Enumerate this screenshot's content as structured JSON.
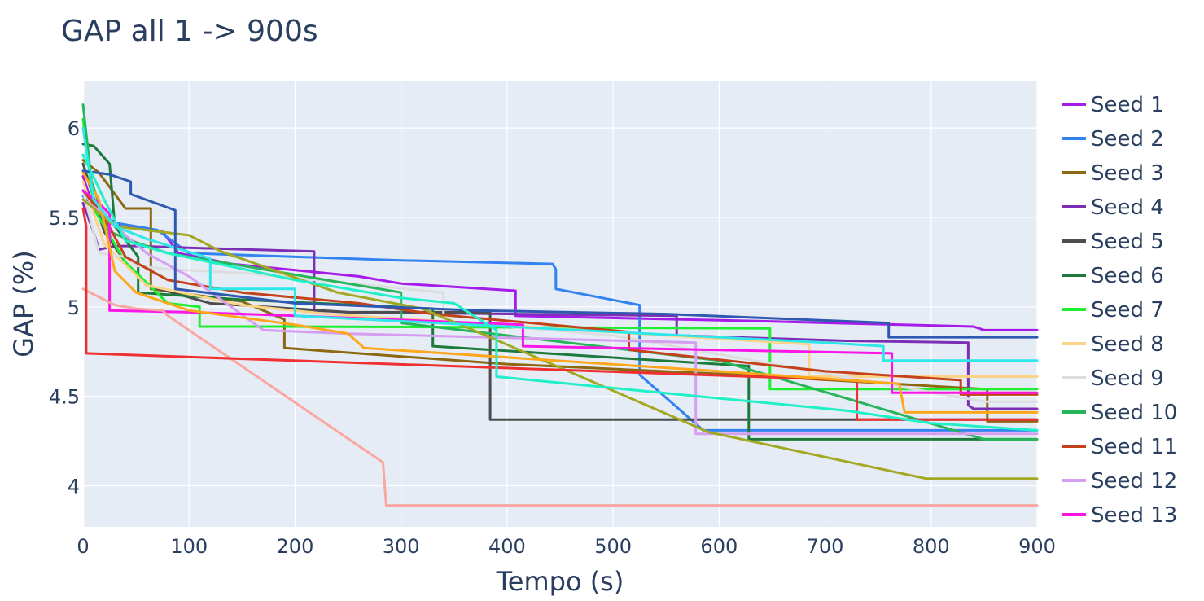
{
  "chart_data": {
    "type": "line",
    "title": "GAP all 1 -> 900s",
    "xlabel": "Tempo (s)",
    "ylabel": "GAP (%)",
    "xlim": [
      0,
      900
    ],
    "ylim": [
      3.77,
      6.26
    ],
    "xticks": [
      0,
      100,
      200,
      300,
      400,
      500,
      600,
      700,
      800,
      900
    ],
    "yticks": [
      4,
      4.5,
      5,
      5.5,
      6
    ],
    "ytick_labels": [
      "4",
      "4.5",
      "5",
      "5.5",
      "6"
    ],
    "grid": true,
    "legend_position": "right",
    "plot_background": "#e5ecf6",
    "series": [
      {
        "name": "Seed 1",
        "color": "#a61bea",
        "points": [
          [
            0,
            5.73
          ],
          [
            10,
            5.55
          ],
          [
            35,
            5.45
          ],
          [
            75,
            5.42
          ],
          [
            90,
            5.3
          ],
          [
            140,
            5.24
          ],
          [
            260,
            5.17
          ],
          [
            300,
            5.13
          ],
          [
            408,
            5.09
          ],
          [
            408,
            4.95
          ],
          [
            640,
            4.92
          ],
          [
            840,
            4.89
          ],
          [
            850,
            4.87
          ],
          [
            900,
            4.87
          ]
        ]
      },
      {
        "name": "Seed 2",
        "color": "#3283f0",
        "points": [
          [
            0,
            5.62
          ],
          [
            20,
            5.48
          ],
          [
            70,
            5.43
          ],
          [
            100,
            5.3
          ],
          [
            300,
            5.26
          ],
          [
            443,
            5.24
          ],
          [
            446,
            5.21
          ],
          [
            446,
            5.1
          ],
          [
            525,
            5.01
          ],
          [
            525,
            4.62
          ],
          [
            560,
            4.44
          ],
          [
            585,
            4.31
          ],
          [
            900,
            4.31
          ]
        ]
      },
      {
        "name": "Seed 3",
        "color": "#8c6810",
        "points": [
          [
            0,
            5.82
          ],
          [
            15,
            5.75
          ],
          [
            30,
            5.63
          ],
          [
            40,
            5.55
          ],
          [
            64,
            5.55
          ],
          [
            64,
            5.1
          ],
          [
            150,
            5.03
          ],
          [
            190,
            4.93
          ],
          [
            190,
            4.77
          ],
          [
            400,
            4.68
          ],
          [
            620,
            4.62
          ],
          [
            850,
            4.54
          ],
          [
            853,
            4.54
          ],
          [
            853,
            4.36
          ],
          [
            900,
            4.36
          ]
        ]
      },
      {
        "name": "Seed 4",
        "color": "#7c2eb5",
        "points": [
          [
            0,
            5.58
          ],
          [
            8,
            5.45
          ],
          [
            12,
            5.38
          ],
          [
            15,
            5.32
          ],
          [
            30,
            5.34
          ],
          [
            50,
            5.34
          ],
          [
            100,
            5.33
          ],
          [
            218,
            5.31
          ],
          [
            218,
            4.98
          ],
          [
            250,
            4.97
          ],
          [
            560,
            4.95
          ],
          [
            560,
            4.84
          ],
          [
            720,
            4.81
          ],
          [
            835,
            4.8
          ],
          [
            835,
            4.45
          ],
          [
            840,
            4.43
          ],
          [
            900,
            4.43
          ]
        ]
      },
      {
        "name": "Seed 5",
        "color": "#4d4d4d",
        "points": [
          [
            0,
            5.8
          ],
          [
            20,
            5.42
          ],
          [
            40,
            5.25
          ],
          [
            60,
            5.12
          ],
          [
            120,
            5.02
          ],
          [
            250,
            4.97
          ],
          [
            384,
            4.97
          ],
          [
            384,
            4.37
          ],
          [
            900,
            4.37
          ]
        ]
      },
      {
        "name": "Seed 6",
        "color": "#1e7a3a",
        "points": [
          [
            0,
            5.91
          ],
          [
            10,
            5.9
          ],
          [
            25,
            5.8
          ],
          [
            30,
            5.45
          ],
          [
            52,
            5.28
          ],
          [
            52,
            5.08
          ],
          [
            150,
            5.04
          ],
          [
            330,
            4.99
          ],
          [
            330,
            4.78
          ],
          [
            625,
            4.67
          ],
          [
            628,
            4.67
          ],
          [
            628,
            4.26
          ],
          [
            900,
            4.26
          ]
        ]
      },
      {
        "name": "Seed 7",
        "color": "#20ee30",
        "points": [
          [
            0,
            6.05
          ],
          [
            10,
            5.55
          ],
          [
            40,
            5.25
          ],
          [
            80,
            5.02
          ],
          [
            110,
            5.0
          ],
          [
            110,
            4.89
          ],
          [
            200,
            4.89
          ],
          [
            648,
            4.88
          ],
          [
            648,
            4.54
          ],
          [
            900,
            4.54
          ]
        ]
      },
      {
        "name": "Seed 8",
        "color": "#fbd487",
        "points": [
          [
            0,
            5.7
          ],
          [
            20,
            5.35
          ],
          [
            60,
            5.12
          ],
          [
            150,
            5.01
          ],
          [
            230,
            4.96
          ],
          [
            685,
            4.79
          ],
          [
            685,
            4.61
          ],
          [
            900,
            4.61
          ]
        ]
      },
      {
        "name": "Seed 9",
        "color": "#dddddd",
        "points": [
          [
            0,
            5.65
          ],
          [
            15,
            5.3
          ],
          [
            40,
            5.28
          ],
          [
            50,
            5.23
          ],
          [
            80,
            5.21
          ],
          [
            150,
            5.19
          ],
          [
            340,
            5.08
          ],
          [
            340,
            4.92
          ],
          [
            500,
            4.84
          ],
          [
            850,
            4.47
          ],
          [
            900,
            4.47
          ]
        ]
      },
      {
        "name": "Seed 10",
        "color": "#27b55a",
        "points": [
          [
            0,
            6.13
          ],
          [
            8,
            5.7
          ],
          [
            15,
            5.58
          ],
          [
            25,
            5.42
          ],
          [
            50,
            5.36
          ],
          [
            80,
            5.3
          ],
          [
            200,
            5.18
          ],
          [
            300,
            5.08
          ],
          [
            300,
            4.91
          ],
          [
            600,
            4.7
          ],
          [
            850,
            4.26
          ],
          [
            900,
            4.26
          ]
        ]
      },
      {
        "name": "Seed 11",
        "color": "#c4421a",
        "points": [
          [
            0,
            5.65
          ],
          [
            20,
            5.5
          ],
          [
            40,
            5.28
          ],
          [
            80,
            5.15
          ],
          [
            150,
            5.08
          ],
          [
            260,
            5.02
          ],
          [
            330,
            4.96
          ],
          [
            515,
            4.86
          ],
          [
            515,
            4.76
          ],
          [
            700,
            4.64
          ],
          [
            828,
            4.59
          ],
          [
            828,
            4.51
          ],
          [
            900,
            4.51
          ]
        ]
      },
      {
        "name": "Seed 12",
        "color": "#d59ef0",
        "points": [
          [
            0,
            5.6
          ],
          [
            20,
            5.52
          ],
          [
            40,
            5.4
          ],
          [
            60,
            5.3
          ],
          [
            100,
            5.17
          ],
          [
            170,
            4.87
          ],
          [
            250,
            4.85
          ],
          [
            578,
            4.8
          ],
          [
            578,
            4.29
          ],
          [
            900,
            4.29
          ]
        ]
      },
      {
        "name": "Seed 13",
        "color": "#fb16e7",
        "points": [
          [
            0,
            5.65
          ],
          [
            15,
            5.58
          ],
          [
            25,
            5.52
          ],
          [
            25,
            4.98
          ],
          [
            100,
            4.97
          ],
          [
            200,
            4.95
          ],
          [
            415,
            4.9
          ],
          [
            415,
            4.78
          ],
          [
            763,
            4.74
          ],
          [
            763,
            4.52
          ],
          [
            900,
            4.52
          ]
        ]
      },
      {
        "name": "",
        "color": "#fba7a1",
        "points": [
          [
            0,
            5.1
          ],
          [
            30,
            5.01
          ],
          [
            50,
            4.99
          ],
          [
            75,
            4.98
          ],
          [
            80,
            4.95
          ],
          [
            283,
            4.13
          ],
          [
            286,
            3.89
          ],
          [
            900,
            3.89
          ]
        ]
      },
      {
        "name": "",
        "color": "#a2a822",
        "points": [
          [
            0,
            5.6
          ],
          [
            30,
            5.45
          ],
          [
            100,
            5.4
          ],
          [
            130,
            5.31
          ],
          [
            240,
            5.08
          ],
          [
            320,
            4.99
          ],
          [
            380,
            4.84
          ],
          [
            590,
            4.3
          ],
          [
            795,
            4.04
          ],
          [
            900,
            4.04
          ]
        ]
      },
      {
        "name": "",
        "color": "#f03030",
        "points": [
          [
            0,
            5.55
          ],
          [
            3,
            5.45
          ],
          [
            3,
            4.74
          ],
          [
            730,
            4.59
          ],
          [
            730,
            4.37
          ],
          [
            900,
            4.37
          ]
        ]
      },
      {
        "name": "",
        "color": "#ffa71a",
        "points": [
          [
            0,
            5.75
          ],
          [
            15,
            5.6
          ],
          [
            30,
            5.2
          ],
          [
            50,
            5.08
          ],
          [
            100,
            4.98
          ],
          [
            200,
            4.9
          ],
          [
            250,
            4.85
          ],
          [
            265,
            4.77
          ],
          [
            600,
            4.64
          ],
          [
            770,
            4.57
          ],
          [
            775,
            4.41
          ],
          [
            900,
            4.41
          ]
        ]
      },
      {
        "name": "",
        "color": "#2fe6e8",
        "points": [
          [
            0,
            6.0
          ],
          [
            10,
            5.6
          ],
          [
            30,
            5.45
          ],
          [
            60,
            5.38
          ],
          [
            120,
            5.27
          ],
          [
            120,
            5.1
          ],
          [
            200,
            5.1
          ],
          [
            200,
            4.95
          ],
          [
            700,
            4.8
          ],
          [
            755,
            4.78
          ],
          [
            755,
            4.7
          ],
          [
            900,
            4.7
          ]
        ]
      },
      {
        "name": "",
        "color": "#2f59b0",
        "points": [
          [
            0,
            5.76
          ],
          [
            25,
            5.74
          ],
          [
            45,
            5.7
          ],
          [
            45,
            5.63
          ],
          [
            87,
            5.54
          ],
          [
            87,
            5.1
          ],
          [
            200,
            5.02
          ],
          [
            370,
            4.98
          ],
          [
            550,
            4.96
          ],
          [
            760,
            4.91
          ],
          [
            760,
            4.83
          ],
          [
            900,
            4.83
          ]
        ]
      },
      {
        "name": "",
        "color": "#20f0c8",
        "points": [
          [
            0,
            5.85
          ],
          [
            20,
            5.6
          ],
          [
            40,
            5.37
          ],
          [
            80,
            5.3
          ],
          [
            200,
            5.15
          ],
          [
            300,
            5.05
          ],
          [
            350,
            5.02
          ],
          [
            390,
            4.87
          ],
          [
            390,
            4.61
          ],
          [
            580,
            4.5
          ],
          [
            720,
            4.42
          ],
          [
            800,
            4.35
          ],
          [
            900,
            4.31
          ]
        ]
      }
    ]
  }
}
